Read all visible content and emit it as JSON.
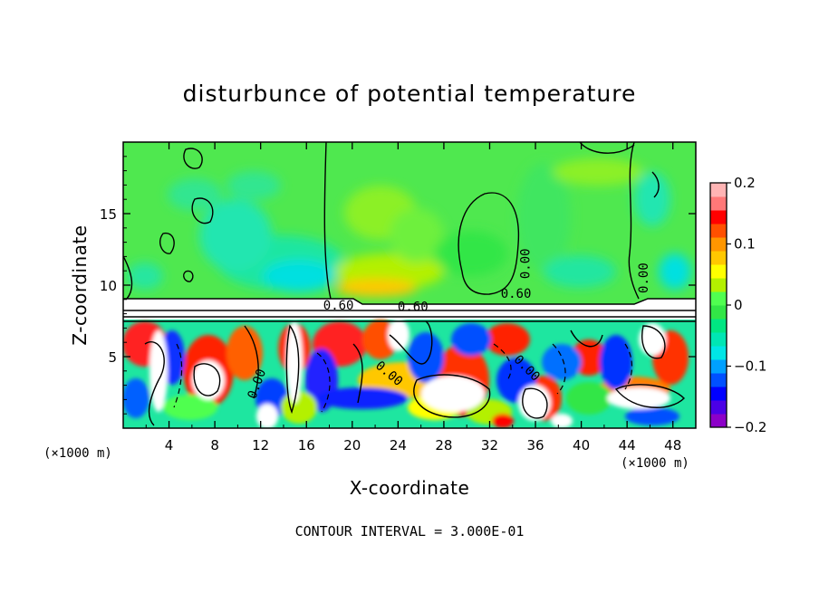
{
  "chart_data": {
    "type": "heatmap",
    "title": "disturbunce of potential temperature",
    "xlabel": "X-coordinate",
    "ylabel": "Z-coordinate",
    "x_unit": "(×1000 m)",
    "x_unit_right": "(×1000 m)",
    "xlim": [
      0,
      50
    ],
    "ylim": [
      0,
      20
    ],
    "x_ticks": [
      4,
      8,
      12,
      16,
      20,
      24,
      28,
      32,
      36,
      40,
      44,
      48
    ],
    "y_ticks": [
      5,
      10,
      15
    ],
    "colorbar": {
      "range": [
        -0.2,
        0.2
      ],
      "ticks": [
        {
          "value": 0.2,
          "label": "0.2"
        },
        {
          "value": 0.1,
          "label": "0.1"
        },
        {
          "value": 0,
          "label": "0"
        },
        {
          "value": -0.1,
          "label": "−0.1"
        },
        {
          "value": -0.2,
          "label": "−0.2"
        }
      ],
      "colors": [
        "#8c00c8",
        "#4b00e6",
        "#0000ff",
        "#0050ff",
        "#00a0ff",
        "#00e6e6",
        "#00e6b4",
        "#00e682",
        "#32e646",
        "#50ff50",
        "#b4f000",
        "#ffff00",
        "#ffc800",
        "#ff9600",
        "#ff5000",
        "#ff0000",
        "#ff7878",
        "#ffb4b4"
      ]
    },
    "contour_interval": "CONTOUR INTERVAL = 3.000E-01",
    "contour_labels": [
      {
        "text": "0.00",
        "x": 35.5,
        "z": 11.5,
        "angle": -90
      },
      {
        "text": "0.00",
        "x": 45.8,
        "z": 10.5,
        "angle": -90
      },
      {
        "text": "0.60",
        "x": 34.3,
        "z": 9.1,
        "angle": 0
      },
      {
        "text": "0.60",
        "x": 18.8,
        "z": 8.3,
        "angle": 0
      },
      {
        "text": "0.60",
        "x": 25.3,
        "z": 8.2,
        "angle": 0
      },
      {
        "text": "0.00",
        "x": 12.0,
        "z": 3.0,
        "angle": -70
      },
      {
        "text": "0.00",
        "x": 23.0,
        "z": 3.6,
        "angle": 40
      },
      {
        "text": "0.00",
        "x": 35.0,
        "z": 4.0,
        "angle": 45
      }
    ]
  }
}
